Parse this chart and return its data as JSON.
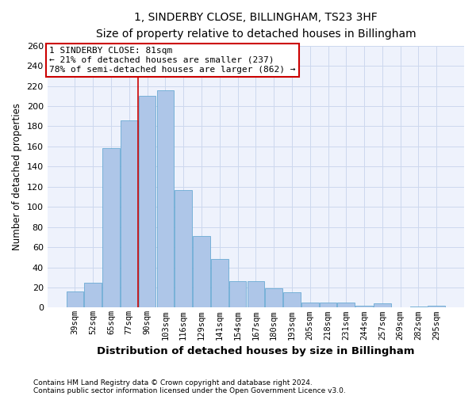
{
  "title": "1, SINDERBY CLOSE, BILLINGHAM, TS23 3HF",
  "subtitle": "Size of property relative to detached houses in Billingham",
  "xlabel": "Distribution of detached houses by size in Billingham",
  "ylabel": "Number of detached properties",
  "categories": [
    "39sqm",
    "52sqm",
    "65sqm",
    "77sqm",
    "90sqm",
    "103sqm",
    "116sqm",
    "129sqm",
    "141sqm",
    "154sqm",
    "167sqm",
    "180sqm",
    "193sqm",
    "205sqm",
    "218sqm",
    "231sqm",
    "244sqm",
    "257sqm",
    "269sqm",
    "282sqm",
    "295sqm"
  ],
  "values": [
    16,
    25,
    158,
    186,
    210,
    216,
    117,
    71,
    48,
    26,
    26,
    19,
    15,
    5,
    5,
    5,
    2,
    4,
    0,
    1,
    2
  ],
  "bar_color": "#aec6e8",
  "bar_edge_color": "#6aaad4",
  "grid_color": "#ccd8ee",
  "background_color": "#eef2fc",
  "vline_x": 3.5,
  "vline_color": "#cc0000",
  "annotation_line1": "1 SINDERBY CLOSE: 81sqm",
  "annotation_line2": "← 21% of detached houses are smaller (237)",
  "annotation_line3": "78% of semi-detached houses are larger (862) →",
  "annotation_box_color": "#ffffff",
  "annotation_box_edge": "#cc0000",
  "footer1": "Contains HM Land Registry data © Crown copyright and database right 2024.",
  "footer2": "Contains public sector information licensed under the Open Government Licence v3.0.",
  "ylim": [
    0,
    260
  ],
  "yticks": [
    0,
    20,
    40,
    60,
    80,
    100,
    120,
    140,
    160,
    180,
    200,
    220,
    240,
    260
  ]
}
